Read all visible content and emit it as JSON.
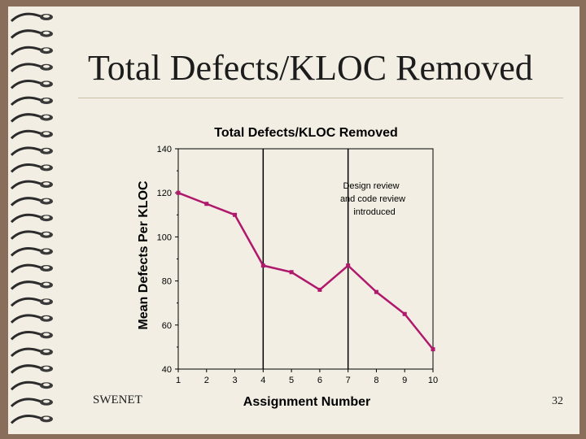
{
  "slide": {
    "title": "Total Defects/KLOC Removed",
    "footer": "SWENET",
    "page_number": "32",
    "colors": {
      "background": "#8a6e5c",
      "slide": "#f2eee3",
      "series": "#b0186c"
    }
  },
  "chart_data": {
    "type": "line",
    "title": "Total Defects/KLOC Removed",
    "xlabel": "Assignment Number",
    "ylabel": "Mean Defects Per KLOC",
    "x": [
      1,
      2,
      3,
      4,
      5,
      6,
      7,
      8,
      9,
      10
    ],
    "series": [
      {
        "values": [
          120,
          115,
          110,
          87,
          84,
          76,
          87,
          75,
          65,
          49
        ]
      }
    ],
    "xlim": [
      1,
      10
    ],
    "ylim": [
      40,
      140
    ],
    "yticks": [
      40,
      60,
      80,
      100,
      120,
      140
    ],
    "grid": false,
    "vertical_markers": [
      4,
      7
    ],
    "annotation": {
      "lines": [
        "Design review",
        "and code review",
        "introduced"
      ]
    }
  }
}
